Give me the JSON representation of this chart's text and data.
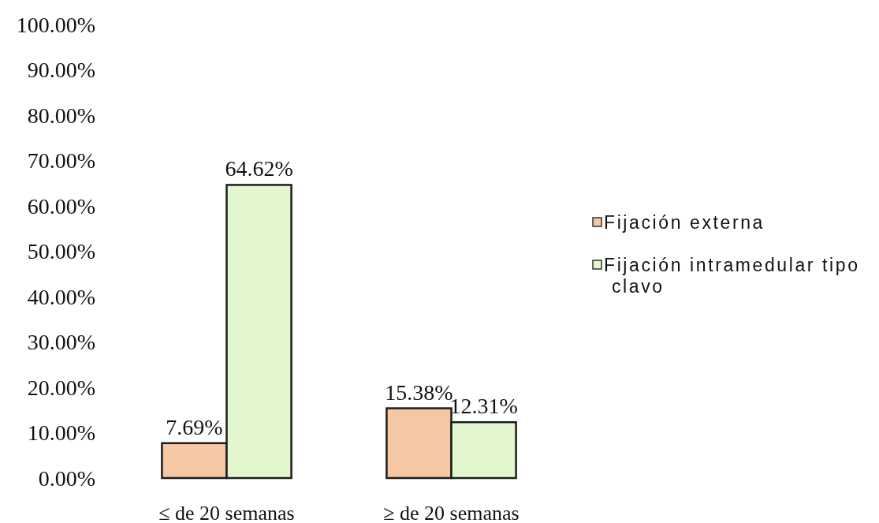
{
  "chart_data": {
    "type": "bar",
    "categories": [
      "≤ de 20 semanas",
      "≥ de 20 semanas"
    ],
    "series": [
      {
        "name": "Fijación externa",
        "color": "#f5c8a3",
        "values": [
          7.69,
          15.38
        ],
        "value_labels": [
          "7.69%",
          "15.38%"
        ]
      },
      {
        "name": "Fijación intramedular tipo clavo",
        "color": "#e2f7cd",
        "values": [
          64.62,
          12.31
        ],
        "value_labels": [
          "64.62%",
          "12.31%"
        ]
      }
    ],
    "ylim": [
      0,
      100
    ],
    "yticks": [
      {
        "value": 0,
        "label": "0.00%"
      },
      {
        "value": 10,
        "label": "10.00%"
      },
      {
        "value": 20,
        "label": "20.00%"
      },
      {
        "value": 30,
        "label": "30.00%"
      },
      {
        "value": 40,
        "label": "40.00%"
      },
      {
        "value": 50,
        "label": "50.00%"
      },
      {
        "value": 60,
        "label": "60.00%"
      },
      {
        "value": 70,
        "label": "70.00%"
      },
      {
        "value": 80,
        "label": "80.00%"
      },
      {
        "value": 90,
        "label": "90.00%"
      },
      {
        "value": 100,
        "label": "100.00%"
      }
    ],
    "grid": false,
    "legend": "right"
  }
}
